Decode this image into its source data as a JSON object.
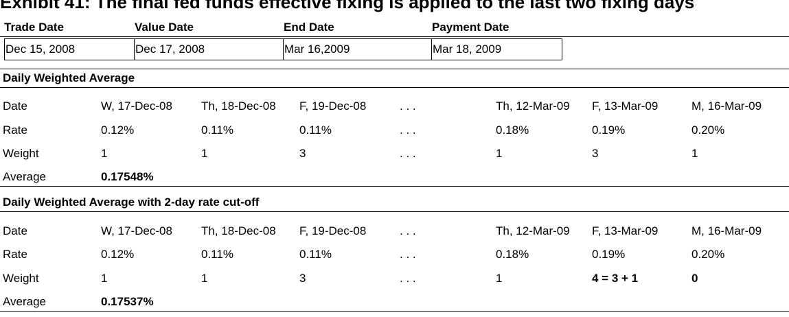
{
  "title": "Exhibit 41: The final fed funds effective fixing is applied to the last two fixing days",
  "headers": {
    "trade_date": "Trade Date",
    "value_date": "Value Date",
    "end_date": "End Date",
    "payment_date": "Payment Date"
  },
  "dates": {
    "trade_date": "Dec 15, 2008",
    "value_date": "Dec 17, 2008",
    "end_date": "Mar 16,2009",
    "payment_date": "Mar 18, 2009"
  },
  "sections": [
    {
      "title": "Daily Weighted Average",
      "rows": [
        {
          "label": "Date",
          "cells": [
            "W, 17-Dec-08",
            "Th, 18-Dec-08",
            "F, 19-Dec-08",
            ". . .",
            "Th, 12-Mar-09",
            "F, 13-Mar-09",
            "M, 16-Mar-09"
          ]
        },
        {
          "label": "Rate",
          "cells": [
            "0.12%",
            "0.11%",
            "0.11%",
            ". . .",
            "0.18%",
            "0.19%",
            "0.20%"
          ]
        },
        {
          "label": "Weight",
          "cells": [
            "1",
            "1",
            "3",
            ". . .",
            "1",
            "3",
            "1"
          ]
        }
      ],
      "average_label": "Average",
      "average_value": "0.17548%"
    },
    {
      "title": "Daily Weighted Average with 2-day rate cut-off",
      "rows": [
        {
          "label": "Date",
          "cells": [
            "W, 17-Dec-08",
            "Th, 18-Dec-08",
            "F, 19-Dec-08",
            ". . .",
            "Th, 12-Mar-09",
            "F, 13-Mar-09",
            "M, 16-Mar-09"
          ]
        },
        {
          "label": "Rate",
          "cells": [
            "0.12%",
            "0.11%",
            "0.11%",
            ". . .",
            "0.18%",
            "0.19%",
            "0.20%"
          ]
        },
        {
          "label": "Weight",
          "cells": [
            "1",
            "1",
            "3",
            ". . .",
            "1",
            "4 = 3 + 1",
            "0"
          ]
        }
      ],
      "average_label": "Average",
      "average_value": "0.17537%"
    }
  ]
}
